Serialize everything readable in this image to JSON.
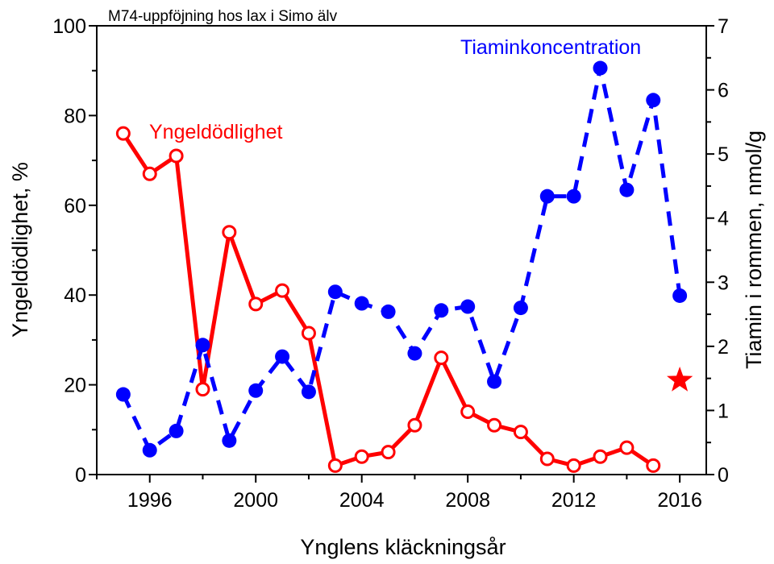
{
  "chart_data": {
    "type": "line",
    "title": "M74-uppföjning hos lax i Simo älv",
    "xlabel": "Ynglens kläckningsår",
    "ylabel": "Yngeldödlighet, %",
    "y2label": "Tiamin i rommen, nmol/g",
    "xlim": [
      1994,
      2017
    ],
    "ylim": [
      0,
      100
    ],
    "y2lim": [
      0,
      7
    ],
    "x_ticks": [
      1996,
      2000,
      2004,
      2008,
      2012,
      2016
    ],
    "y_ticks": [
      0,
      20,
      40,
      60,
      80,
      100
    ],
    "y2_ticks": [
      0,
      1,
      2,
      3,
      4,
      5,
      6,
      7
    ],
    "grid": false,
    "series": [
      {
        "name": "Yngeldödlighet",
        "axis": "left",
        "color": "#ff0000",
        "line_style": "solid",
        "marker": "open-circle",
        "x": [
          1995,
          1996,
          1997,
          1998,
          1999,
          2000,
          2001,
          2002,
          2003,
          2004,
          2005,
          2006,
          2007,
          2008,
          2009,
          2010,
          2011,
          2012,
          2013,
          2014,
          2015
        ],
        "values": [
          76,
          67,
          71,
          19,
          54,
          38,
          41,
          31.5,
          2,
          4,
          5,
          11,
          26,
          14,
          11,
          9.5,
          3.5,
          2,
          4,
          6,
          2
        ]
      },
      {
        "name": "Yngeldödlighet 2016",
        "axis": "left",
        "color": "#ff0000",
        "marker": "star",
        "x": [
          2016
        ],
        "values": [
          21
        ]
      },
      {
        "name": "Tiaminkoncentration",
        "axis": "right",
        "color": "#0000ff",
        "line_style": "dashed",
        "marker": "filled-circle",
        "x": [
          1995,
          1996,
          1997,
          1998,
          1999,
          2000,
          2001,
          2002,
          2003,
          2004,
          2005,
          2006,
          2007,
          2008,
          2009,
          2010,
          2011,
          2012,
          2013,
          2014,
          2015,
          2016
        ],
        "values": [
          1.25,
          0.38,
          0.68,
          2.02,
          0.53,
          1.31,
          1.84,
          1.29,
          2.85,
          2.67,
          2.54,
          1.89,
          2.56,
          2.62,
          1.45,
          2.6,
          4.34,
          4.34,
          6.34,
          4.44,
          5.84,
          2.79
        ]
      }
    ],
    "labels": {
      "mortality": "Yngeldödlighet",
      "thiamine": "Tiaminkoncentration"
    }
  }
}
